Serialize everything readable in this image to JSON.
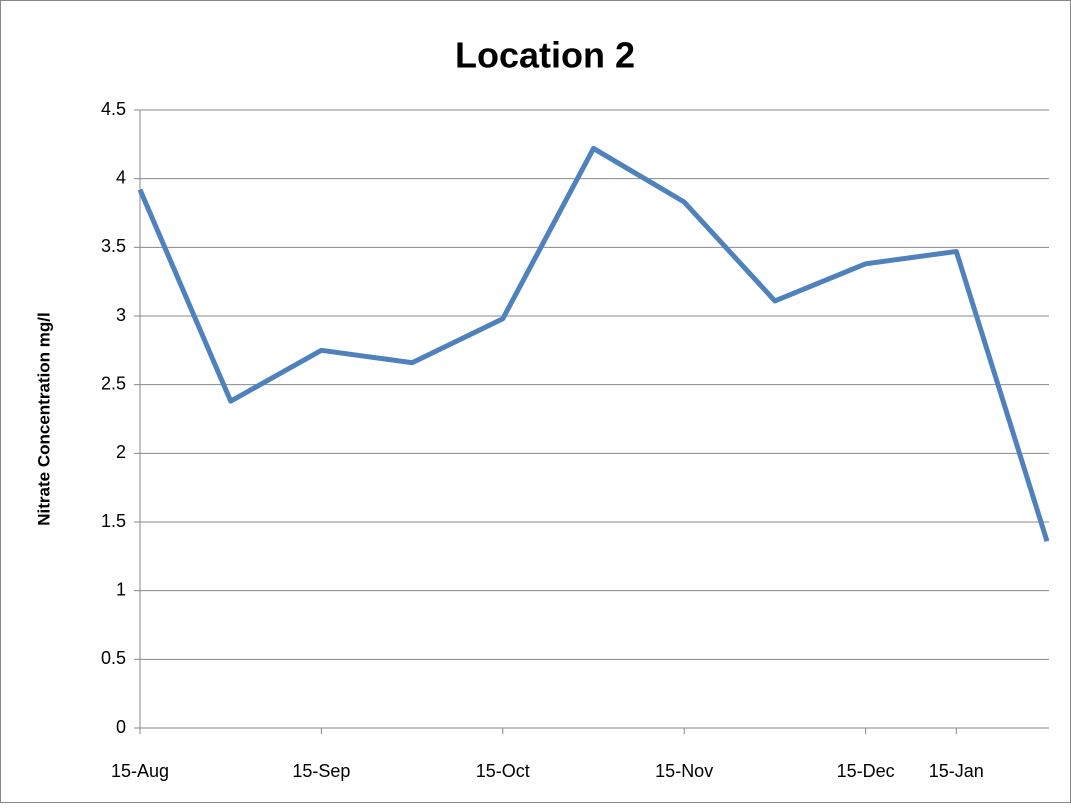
{
  "chart_data": {
    "type": "line",
    "title": "Location 2",
    "y_label": "Nitrate Concentration mg/l",
    "categories": [
      "15-Aug",
      null,
      "15-Sep",
      null,
      "15-Oct",
      null,
      "15-Nov",
      null,
      "15-Dec",
      "15-Jan",
      null
    ],
    "values": [
      3.92,
      2.38,
      2.75,
      2.66,
      2.98,
      4.22,
      3.83,
      3.11,
      3.38,
      3.47,
      1.36
    ],
    "color": "#4f81bd",
    "ylim": [
      0,
      4.5
    ],
    "yticks": [
      0,
      0.5,
      1,
      1.5,
      2,
      2.5,
      3,
      3.5,
      4,
      4.5
    ],
    "grid": true
  }
}
